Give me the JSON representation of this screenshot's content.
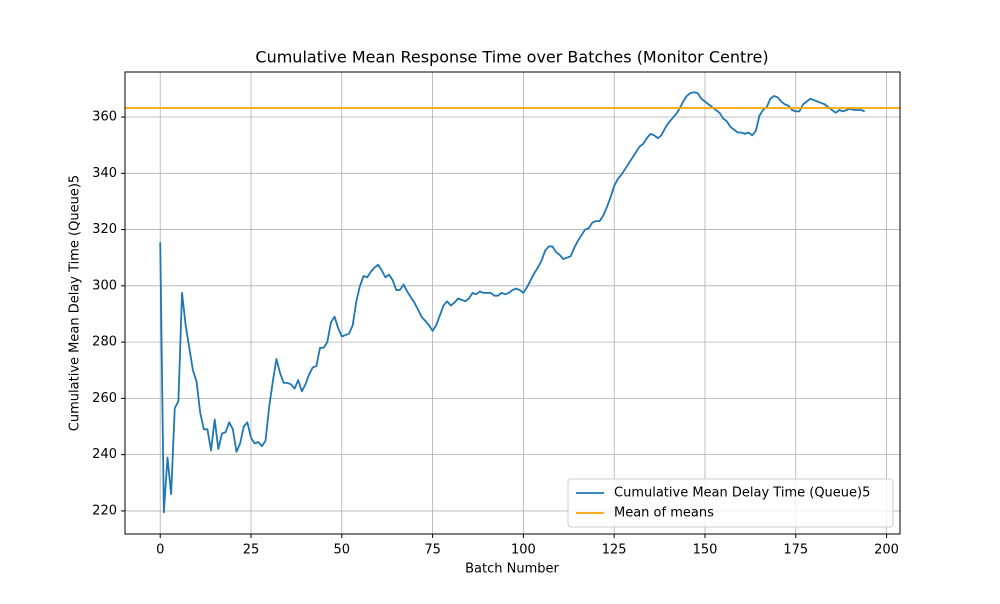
{
  "chart_data": {
    "type": "line",
    "title": "Cumulative Mean Response Time over Batches (Monitor Centre)",
    "xlabel": "Batch Number",
    "ylabel": "Cumulative Mean Delay Time (Queue)5",
    "xlim": [
      -9.7,
      203.7
    ],
    "ylim": [
      211.8,
      376
    ],
    "xticks": [
      0,
      25,
      50,
      75,
      100,
      125,
      150,
      175,
      200
    ],
    "yticks": [
      220,
      240,
      260,
      280,
      300,
      320,
      340,
      360
    ],
    "grid": true,
    "legend": "lower right",
    "x": [
      0,
      1,
      2,
      3,
      4,
      5,
      6,
      7,
      8,
      9,
      10,
      11,
      12,
      13,
      14,
      15,
      16,
      17,
      18,
      19,
      20,
      21,
      22,
      23,
      24,
      25,
      26,
      27,
      28,
      29,
      30,
      31,
      32,
      33,
      34,
      35,
      36,
      37,
      38,
      39,
      40,
      41,
      42,
      43,
      44,
      45,
      46,
      47,
      48,
      49,
      50,
      51,
      52,
      53,
      54,
      55,
      56,
      57,
      58,
      59,
      60,
      61,
      62,
      63,
      64,
      65,
      66,
      67,
      68,
      69,
      70,
      71,
      72,
      73,
      74,
      75,
      76,
      77,
      78,
      79,
      80,
      81,
      82,
      83,
      84,
      85,
      86,
      87,
      88,
      89,
      90,
      91,
      92,
      93,
      94,
      95,
      96,
      97,
      98,
      99,
      100,
      101,
      102,
      103,
      104,
      105,
      106,
      107,
      108,
      109,
      110,
      111,
      112,
      113,
      114,
      115,
      116,
      117,
      118,
      119,
      120,
      121,
      122,
      123,
      124,
      125,
      126,
      127,
      128,
      129,
      130,
      131,
      132,
      133,
      134,
      135,
      136,
      137,
      138,
      139,
      140,
      141,
      142,
      143,
      144,
      145,
      146,
      147,
      148,
      149,
      150,
      151,
      152,
      153,
      154,
      155,
      156,
      157,
      158,
      159,
      160,
      161,
      162,
      163,
      164,
      165,
      166,
      167,
      168,
      169,
      170,
      171,
      172,
      173,
      174,
      175,
      176,
      177,
      178,
      179,
      180,
      181,
      182,
      183,
      184,
      185,
      186,
      187,
      188,
      189,
      190,
      191,
      192,
      193,
      194
    ],
    "series": [
      {
        "name": "Cumulative Mean Delay Time (Queue)5",
        "color": "#1f77b4",
        "values": [
          315.5,
          219.5,
          239,
          226,
          256.5,
          259,
          297.5,
          286,
          278,
          270,
          266,
          255,
          249,
          249,
          241.5,
          252.5,
          242,
          247.5,
          248,
          251.5,
          249,
          241,
          244,
          250,
          251.5,
          246,
          244,
          244.5,
          243,
          245,
          257,
          266,
          274,
          269,
          265.5,
          265.5,
          265,
          263.5,
          266.5,
          262.5,
          265,
          268.5,
          271,
          271.5,
          278,
          278,
          280,
          287,
          289,
          285,
          282,
          282.5,
          283,
          286,
          294.5,
          300,
          303.5,
          303,
          305,
          306.5,
          307.5,
          305.5,
          303,
          304,
          302,
          298.5,
          298.5,
          300.5,
          298,
          296,
          294,
          291.5,
          289,
          287.5,
          286,
          284,
          286,
          289.5,
          293,
          294.5,
          293,
          294,
          295.5,
          295,
          294.5,
          295.5,
          297.5,
          297,
          298,
          297.5,
          297.5,
          297.5,
          296.5,
          296.5,
          297.5,
          297,
          297.5,
          298.5,
          299,
          298.5,
          297.5,
          299.5,
          302,
          304.5,
          306.5,
          309,
          312.5,
          314,
          314,
          312,
          311,
          309.5,
          310,
          310.5,
          313.5,
          316,
          318,
          320,
          320.5,
          322.5,
          323,
          323,
          325,
          328,
          331.5,
          335.5,
          338,
          339.5,
          341.5,
          343.5,
          345.5,
          347.5,
          349.5,
          350.5,
          352.5,
          354,
          353.5,
          352.5,
          353.5,
          356,
          358,
          359.5,
          361,
          363,
          365.5,
          367.5,
          368.5,
          368.8,
          368.5,
          366.5,
          365.5,
          364.5,
          363.5,
          362.5,
          361.5,
          359.5,
          358.5,
          356.5,
          355.5,
          354.5,
          354.5,
          354,
          354.5,
          353.5,
          355,
          360.5,
          362.5,
          363.5,
          366.5,
          367.5,
          367,
          365.5,
          364.5,
          364,
          362.5,
          362,
          362,
          364.5,
          365.5,
          366.5,
          366,
          365.5,
          365,
          364.5,
          363.5,
          362.5,
          361.5,
          362.5,
          362,
          362.5,
          363,
          362.5,
          362.5,
          362.5,
          362
        ]
      }
    ],
    "hlines": [
      {
        "name": "Mean of means",
        "color": "#ffa500",
        "value": 363.2
      }
    ]
  }
}
